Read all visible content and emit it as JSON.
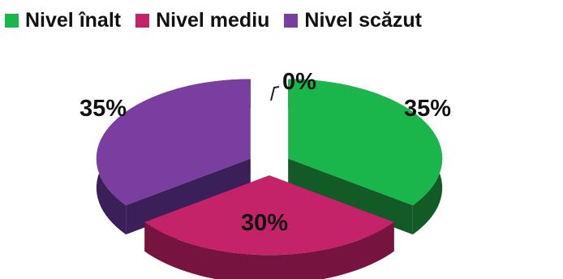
{
  "chart_data": {
    "type": "pie",
    "title": "",
    "legend_position": "top",
    "slices": [
      {
        "label": "Nivel înalt",
        "value": 35,
        "display": "35%",
        "color": "#1ab64c",
        "side_color": "#125a26"
      },
      {
        "label": "Nivel mediu",
        "value": 30,
        "display": "30%",
        "color": "#c4236a",
        "side_color": "#76133f"
      },
      {
        "label": "Nivel scăzut",
        "value": 35,
        "display": "35%",
        "color": "#7a3da0",
        "side_color": "#3b1f58"
      },
      {
        "label": "",
        "value": 0,
        "display": "0%",
        "color": "#999999",
        "side_color": "#666666"
      }
    ]
  }
}
